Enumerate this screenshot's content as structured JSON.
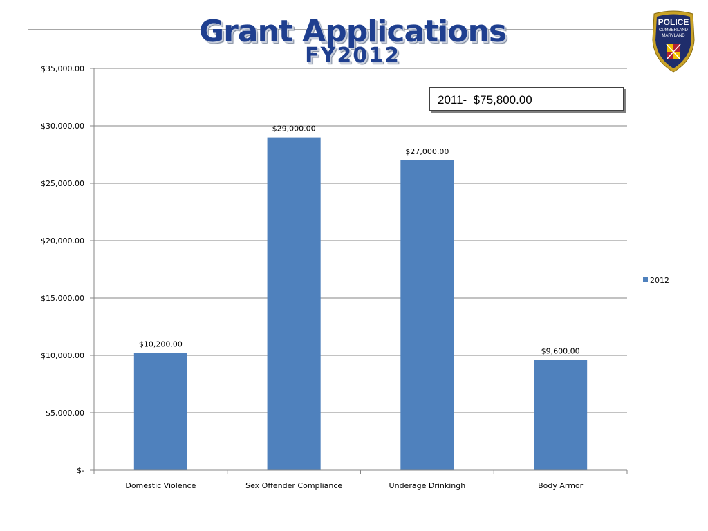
{
  "title": {
    "line1": "Grant Applications",
    "line2": "FY2012"
  },
  "callout": {
    "text": "2011-  $75,800.00"
  },
  "badge": {
    "top_text": "POLICE",
    "city": "CUMBERLAND",
    "state": "MARYLAND",
    "colors": {
      "outer": "#c9a227",
      "inner": "#1f2d6b",
      "shield": "#b22234"
    }
  },
  "chart_data": {
    "type": "bar",
    "categories": [
      "Domestic Violence",
      "Sex Offender Compliance",
      "Underage Drinkingh",
      "Body Armor"
    ],
    "series": [
      {
        "name": "2012",
        "values": [
          10200,
          29000,
          27000,
          9600
        ],
        "color": "#4f81bd"
      }
    ],
    "data_labels": [
      "$10,200.00",
      "$29,000.00",
      "$27,000.00",
      "$9,600.00"
    ],
    "y_ticks": [
      0,
      5000,
      10000,
      15000,
      20000,
      25000,
      30000,
      35000
    ],
    "y_tick_labels": [
      "$-",
      "$5,000.00",
      "$10,000.00",
      "$15,000.00",
      "$20,000.00",
      "$25,000.00",
      "$30,000.00",
      "$35,000.00"
    ],
    "ylim": [
      0,
      35000
    ],
    "grid": true,
    "legend": {
      "position": "right",
      "entries": [
        "2012"
      ]
    },
    "colors": {
      "bar": "#4f81bd",
      "grid": "#868686",
      "axis": "#868686"
    }
  }
}
